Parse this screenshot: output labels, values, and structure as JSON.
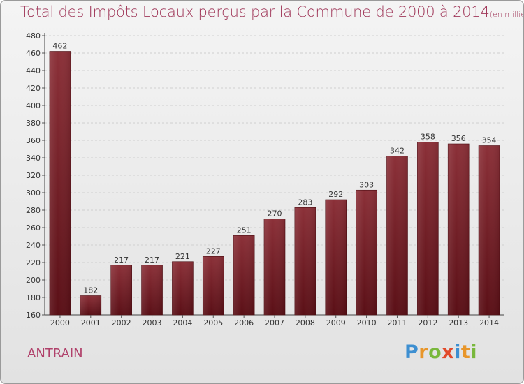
{
  "title": "Total des Impôts Locaux perçus par la Commune de 2000 à 2014",
  "unit_note": "(en milliers d'€)",
  "commune": "ANTRAIN",
  "logo": {
    "text": "Proxiti",
    "letters": [
      {
        "ch": "P",
        "color": "#3d8fd1"
      },
      {
        "ch": "r",
        "color": "#e8962a"
      },
      {
        "ch": "o",
        "color": "#79b83c"
      },
      {
        "ch": "x",
        "color": "#e24a2a"
      },
      {
        "ch": "i",
        "color": "#3d8fd1"
      },
      {
        "ch": "t",
        "color": "#e8962a"
      },
      {
        "ch": "i",
        "color": "#79b83c"
      }
    ]
  },
  "colors": {
    "bar_top": "#8b3038",
    "bar_bottom": "#5a0f16",
    "title": "#a0385a",
    "axis_text": "#333333"
  },
  "chart_data": {
    "type": "bar",
    "title": "Total des Impôts Locaux perçus par la Commune de 2000 à 2014",
    "xlabel": "",
    "ylabel": "",
    "categories": [
      "2000",
      "2001",
      "2002",
      "2003",
      "2004",
      "2005",
      "2006",
      "2007",
      "2008",
      "2009",
      "2010",
      "2011",
      "2012",
      "2013",
      "2014"
    ],
    "values": [
      462,
      182,
      217,
      217,
      221,
      227,
      251,
      270,
      283,
      292,
      303,
      342,
      358,
      356,
      354
    ],
    "ylim": [
      160,
      480
    ],
    "yticks": [
      160,
      180,
      200,
      220,
      240,
      260,
      280,
      300,
      320,
      340,
      360,
      380,
      400,
      420,
      440,
      460,
      480
    ],
    "grid": true
  }
}
